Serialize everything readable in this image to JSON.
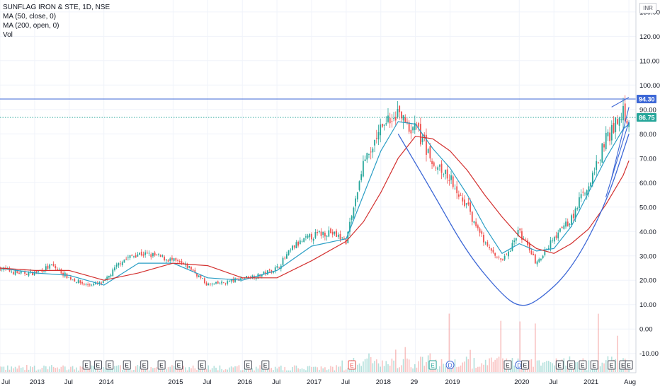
{
  "legend": {
    "symbol_line": "SUNFLAG IRON & STE, 1D, NSE",
    "ma50_line": "MA (50, close, 0)",
    "ma200_line": "MA (200, open, 0)",
    "vol_line": "Vol"
  },
  "currency_label": "INR",
  "colors": {
    "up": "#26a69a",
    "down": "#ef5350",
    "ma50": "#2a9ec5",
    "ma200": "#d3302f",
    "drawing": "#3c67d6",
    "grid": "#f0f3fa",
    "axis_text": "#131722"
  },
  "chart_data": {
    "type": "candlestick",
    "title": "SUNFLAG IRON & STE, 1D, NSE",
    "y_unit": "INR",
    "yticks": [
      "130.00",
      "120.00",
      "110.00",
      "100.00",
      "90.00",
      "80.00",
      "70.00",
      "60.00",
      "50.00",
      "40.00",
      "30.00",
      "20.00",
      "10.00",
      "0.00",
      "-10.00"
    ],
    "ylim": [
      -14,
      133
    ],
    "xticks": [
      "Jul",
      "2013",
      "Jul",
      "2014",
      "2015",
      "Jul",
      "2016",
      "Jul",
      "2017",
      "Jul",
      "2018",
      "29",
      "2019",
      "2020",
      "Jul",
      "2021",
      "Aug"
    ],
    "x_start": "2012-07",
    "x_end": "2021-08",
    "price_labels": [
      {
        "label": "94.30",
        "value": 94.3,
        "color": "#3c67d6"
      },
      {
        "label": "86.75",
        "value": 86.75,
        "color": "#26a69a"
      }
    ],
    "horizontal_lines": [
      {
        "value": 94.3,
        "style": "solid",
        "color": "#3c67d6"
      },
      {
        "value": 86.75,
        "style": "dotted",
        "color": "#26a69a"
      }
    ],
    "close_path": [
      [
        "2012-07",
        25
      ],
      [
        "2012-10",
        23
      ],
      [
        "2013-01",
        23
      ],
      [
        "2013-04",
        26
      ],
      [
        "2013-07",
        21
      ],
      [
        "2013-10",
        18
      ],
      [
        "2014-01",
        19
      ],
      [
        "2014-04",
        28
      ],
      [
        "2014-07",
        31
      ],
      [
        "2014-10",
        30
      ],
      [
        "2015-01",
        28
      ],
      [
        "2015-04",
        25
      ],
      [
        "2015-07",
        18
      ],
      [
        "2015-10",
        19
      ],
      [
        "2016-01",
        21
      ],
      [
        "2016-04",
        22
      ],
      [
        "2016-07",
        25
      ],
      [
        "2016-10",
        34
      ],
      [
        "2017-01",
        38
      ],
      [
        "2017-04",
        40
      ],
      [
        "2017-07",
        36
      ],
      [
        "2017-10",
        68
      ],
      [
        "2018-01",
        82
      ],
      [
        "2018-04",
        88
      ],
      [
        "2018-07",
        82
      ],
      [
        "2018-10",
        70
      ],
      [
        "2019-01",
        62
      ],
      [
        "2019-04",
        50
      ],
      [
        "2019-07",
        35
      ],
      [
        "2019-10",
        27
      ],
      [
        "2020-01",
        40
      ],
      [
        "2020-04",
        27
      ],
      [
        "2020-07",
        37
      ],
      [
        "2020-10",
        45
      ],
      [
        "2021-01",
        60
      ],
      [
        "2021-04",
        78
      ],
      [
        "2021-07",
        88
      ],
      [
        "2021-08",
        87
      ]
    ],
    "series": [
      {
        "name": "MA (50, close, 0)",
        "values": [
          [
            "2012-07",
            25
          ],
          [
            "2013-01",
            23
          ],
          [
            "2013-07",
            22
          ],
          [
            "2014-01",
            18
          ],
          [
            "2014-07",
            27
          ],
          [
            "2015-01",
            27
          ],
          [
            "2015-07",
            21
          ],
          [
            "2016-01",
            20
          ],
          [
            "2016-07",
            24
          ],
          [
            "2017-01",
            34
          ],
          [
            "2017-07",
            37
          ],
          [
            "2017-10",
            55
          ],
          [
            "2018-01",
            73
          ],
          [
            "2018-04",
            85
          ],
          [
            "2018-07",
            84
          ],
          [
            "2018-10",
            74
          ],
          [
            "2019-01",
            66
          ],
          [
            "2019-04",
            55
          ],
          [
            "2019-07",
            42
          ],
          [
            "2019-10",
            31
          ],
          [
            "2020-01",
            35
          ],
          [
            "2020-04",
            32
          ],
          [
            "2020-07",
            33
          ],
          [
            "2020-10",
            42
          ],
          [
            "2021-01",
            56
          ],
          [
            "2021-04",
            70
          ],
          [
            "2021-07",
            82
          ],
          [
            "2021-08",
            84
          ]
        ]
      },
      {
        "name": "MA (200, open, 0)",
        "values": [
          [
            "2012-07",
            25
          ],
          [
            "2013-01",
            24
          ],
          [
            "2013-07",
            24
          ],
          [
            "2014-01",
            20
          ],
          [
            "2014-07",
            23
          ],
          [
            "2015-01",
            27
          ],
          [
            "2015-07",
            26
          ],
          [
            "2016-01",
            21
          ],
          [
            "2016-07",
            21
          ],
          [
            "2017-01",
            28
          ],
          [
            "2017-07",
            36
          ],
          [
            "2017-10",
            44
          ],
          [
            "2018-01",
            56
          ],
          [
            "2018-04",
            70
          ],
          [
            "2018-07",
            79
          ],
          [
            "2018-10",
            78
          ],
          [
            "2019-01",
            73
          ],
          [
            "2019-04",
            65
          ],
          [
            "2019-07",
            55
          ],
          [
            "2019-10",
            46
          ],
          [
            "2020-01",
            38
          ],
          [
            "2020-04",
            33
          ],
          [
            "2020-07",
            31
          ],
          [
            "2020-10",
            35
          ],
          [
            "2021-01",
            41
          ],
          [
            "2021-04",
            51
          ],
          [
            "2021-07",
            63
          ],
          [
            "2021-08",
            69
          ]
        ]
      }
    ],
    "drawings": [
      {
        "type": "cup_curve",
        "points": [
          [
            "2018-04",
            80
          ],
          [
            "2018-10",
            56
          ],
          [
            "2019-04",
            31
          ],
          [
            "2019-10",
            14
          ],
          [
            "2020-01",
            9
          ],
          [
            "2020-04",
            11
          ],
          [
            "2020-10",
            24
          ],
          [
            "2021-04",
            51
          ],
          [
            "2021-08",
            80
          ]
        ]
      },
      {
        "type": "trend_line",
        "points": [
          [
            "2021-04",
            54
          ],
          [
            "2021-08",
            85
          ]
        ]
      },
      {
        "type": "trend_line",
        "points": [
          [
            "2021-05",
            62
          ],
          [
            "2021-08",
            91
          ]
        ]
      },
      {
        "type": "trend_line",
        "points": [
          [
            "2021-05",
            91
          ],
          [
            "2021-08",
            95
          ]
        ]
      }
    ],
    "event_markers": [
      {
        "date": "2013-10",
        "label": "E",
        "kind": "earnings"
      },
      {
        "date": "2013-12",
        "label": "E",
        "kind": "earnings"
      },
      {
        "date": "2014-02",
        "label": "E",
        "kind": "earnings"
      },
      {
        "date": "2014-05",
        "label": "E",
        "kind": "earnings"
      },
      {
        "date": "2014-08",
        "label": "E",
        "kind": "earnings"
      },
      {
        "date": "2014-11",
        "label": "E",
        "kind": "earnings"
      },
      {
        "date": "2015-02",
        "label": "E",
        "kind": "earnings"
      },
      {
        "date": "2015-06",
        "label": "E",
        "kind": "earnings"
      },
      {
        "date": "2016-02",
        "label": "E",
        "kind": "earnings"
      },
      {
        "date": "2016-05",
        "label": "E",
        "kind": "earnings"
      },
      {
        "date": "2017-08",
        "label": "E",
        "kind": "earnings-red"
      },
      {
        "date": "2018-10",
        "label": "E",
        "kind": "earnings-green"
      },
      {
        "date": "2019-01",
        "label": "D",
        "kind": "dividend"
      },
      {
        "date": "2019-11",
        "label": "E",
        "kind": "earnings"
      },
      {
        "date": "2020-01",
        "label": "D",
        "kind": "dividend"
      },
      {
        "date": "2020-02",
        "label": "E",
        "kind": "earnings"
      },
      {
        "date": "2020-08",
        "label": "E",
        "kind": "earnings"
      },
      {
        "date": "2020-10",
        "label": "E",
        "kind": "earnings"
      },
      {
        "date": "2020-12",
        "label": "E",
        "kind": "earnings"
      },
      {
        "date": "2021-02",
        "label": "E",
        "kind": "earnings"
      },
      {
        "date": "2021-05",
        "label": "E",
        "kind": "earnings"
      },
      {
        "date": "2021-07",
        "label": "E",
        "kind": "earnings"
      },
      {
        "date": "2021-08",
        "label": "E",
        "kind": "earnings"
      }
    ],
    "grid": true,
    "legend": "top-left"
  }
}
